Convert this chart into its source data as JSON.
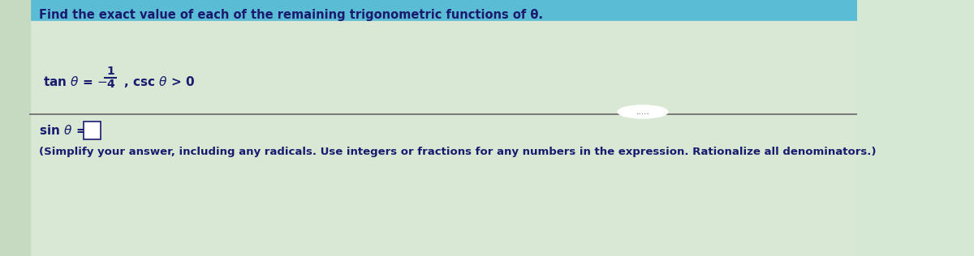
{
  "title": "Find the exact value of each of the remaining trigonometric functions of θ.",
  "line1_parts": [
    "tan θ = −",
    "1",
    "4",
    ", csc θ > 0"
  ],
  "line2_label": "sin θ = ",
  "line3": "(Simplify your answer, including any radicals. Use integers or fractions for any numbers in the expression. Rationalize all denominators.)",
  "bg_color_top": "#d0e8f0",
  "bg_color_main": "#dce8d8",
  "bg_color_bottom": "#dce8d8",
  "separator_color": "#888888",
  "text_color": "#1a1a6e",
  "title_fontsize": 10,
  "body_fontsize": 10,
  "small_fontsize": 9,
  "dots": "....."
}
